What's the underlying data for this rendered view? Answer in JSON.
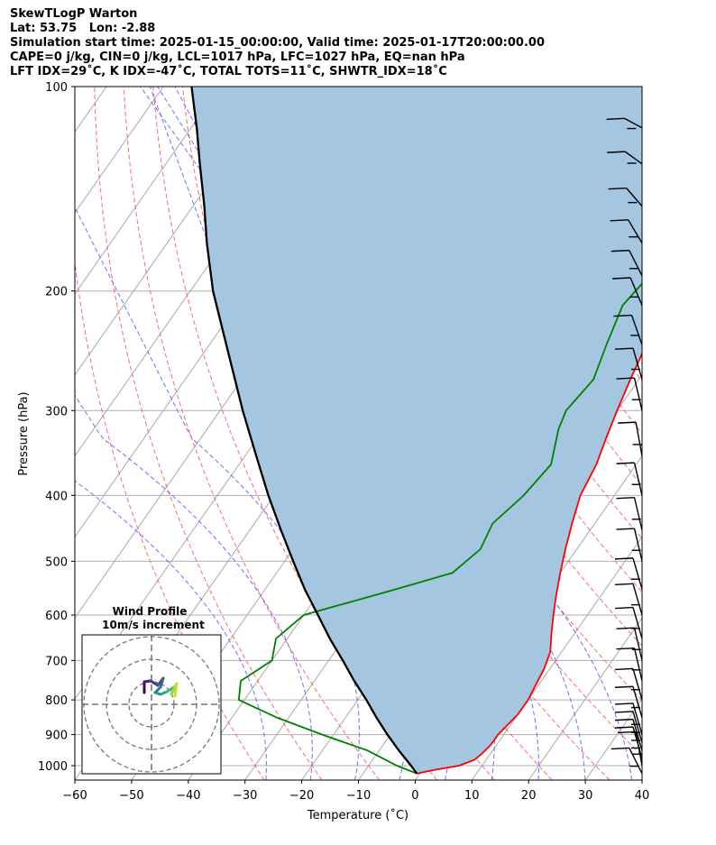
{
  "header": {
    "line1": "SkewTLogP Warton",
    "line2": "Lat: 53.75   Lon: -2.88",
    "line3": "Simulation start time: 2025-01-15_00:00:00, Valid time: 2025-01-17T20:00:00.00",
    "line4": "CAPE=0 j/kg, CIN=0 j/kg, LCL=1017 hPa, LFC=1027 hPa, EQ=nan hPa",
    "line5": "LFT IDX=29˚C, K IDX=-47˚C, TOTAL TOTS=11˚C, SHWTR_IDX=18˚C"
  },
  "chart_data": {
    "type": "line",
    "xlabel": "Temperature (˚C)",
    "ylabel": "Pressure (hPa)",
    "xlim": [
      -60,
      40
    ],
    "ylim": [
      1050,
      100
    ],
    "yscale": "log",
    "skew": "skewed isotherms",
    "grid": true,
    "x_ticks": [
      "−60",
      "−50",
      "−40",
      "−30",
      "−20",
      "−10",
      "0",
      "10",
      "20",
      "30",
      "40"
    ],
    "y_ticks": [
      "100",
      "200",
      "300",
      "400",
      "500",
      "600",
      "700",
      "800",
      "900",
      "1000"
    ],
    "series": [
      {
        "role": "temperature",
        "color": "#ff0000",
        "p": [
          1027,
          1015,
          1000,
          980,
          960,
          930,
          900,
          870,
          840,
          800,
          760,
          720,
          680,
          640,
          600,
          560,
          520,
          480,
          440,
          400,
          360,
          330,
          300,
          270,
          240,
          220,
          205,
          195,
          180,
          160,
          140,
          125,
          110,
          100
        ],
        "t": [
          -0.5,
          2,
          6,
          8,
          8.5,
          9,
          9,
          9.5,
          10,
          10,
          9.5,
          9,
          8,
          6,
          4,
          2,
          0,
          -2,
          -4,
          -6,
          -7,
          -8.5,
          -10,
          -11.5,
          -13,
          -14,
          -13.5,
          -12.5,
          -12,
          -11.5,
          -11,
          -10.5,
          -10,
          -9.5
        ]
      },
      {
        "role": "dewpoint",
        "color": "#008000",
        "p": [
          1027,
          1000,
          950,
          900,
          850,
          800,
          750,
          700,
          650,
          600,
          550,
          520,
          480,
          440,
          400,
          360,
          320,
          300,
          270,
          240,
          210,
          190,
          170,
          155,
          140,
          125,
          110,
          100
        ],
        "t": [
          -0.5,
          -5,
          -12,
          -22,
          -32,
          -41,
          -43,
          -40,
          -42,
          -40,
          -27,
          -19,
          -17,
          -18,
          -16,
          -15,
          -18,
          -19,
          -18,
          -20,
          -22,
          -21,
          -20,
          -22,
          -20,
          -19,
          -18,
          -17
        ]
      },
      {
        "role": "parcel profile",
        "color": "#000000",
        "p": [
          1027,
          1000,
          950,
          900,
          850,
          800,
          750,
          700,
          650,
          600,
          550,
          500,
          450,
          400,
          350,
          300,
          250,
          200,
          170,
          150,
          130,
          115,
          100
        ],
        "t": [
          -0.5,
          -2.5,
          -6.5,
          -10.5,
          -14.5,
          -18.5,
          -23,
          -27.5,
          -32.5,
          -37.5,
          -43,
          -48.5,
          -54.5,
          -61,
          -68,
          -76,
          -85,
          -96,
          -103,
          -108,
          -114,
          -119,
          -125
        ]
      }
    ],
    "shading": {
      "between": [
        "temperature",
        "parcel profile"
      ],
      "color": "#a4c6e0"
    },
    "wind_barbs": {
      "p": [
        1027,
        1000,
        975,
        950,
        925,
        900,
        850,
        800,
        750,
        700,
        650,
        600,
        550,
        500,
        450,
        400,
        350,
        300,
        270,
        240,
        210,
        190,
        170,
        150,
        130,
        115
      ],
      "speed_kt": [
        20,
        15,
        15,
        15,
        15,
        15,
        15,
        15,
        15,
        15,
        15,
        15,
        15,
        15,
        15,
        15,
        15,
        15,
        15,
        15,
        15,
        15,
        15,
        15,
        15,
        15
      ],
      "direction_deg": [
        225,
        200,
        210,
        210,
        210,
        210,
        210,
        210,
        205,
        205,
        210,
        210,
        210,
        205,
        205,
        205,
        200,
        205,
        210,
        215,
        220,
        225,
        230,
        240,
        250,
        255
      ]
    },
    "inset": {
      "title": "Wind Profile",
      "subtitle": "10m/s increment",
      "rings": 3
    }
  }
}
